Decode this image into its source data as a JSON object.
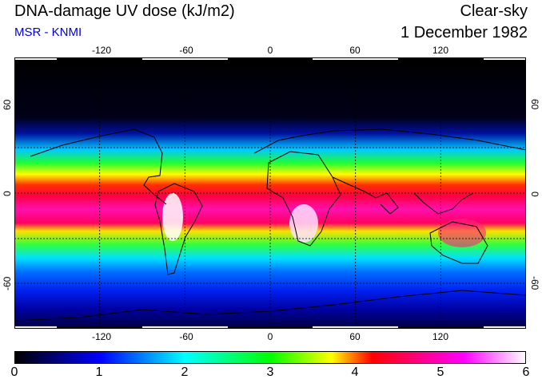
{
  "header": {
    "title": "DNA-damage UV dose (kJ/m2)",
    "subtitle": "MSR - KNMI",
    "condition": "Clear-sky",
    "date": "1 December 1982"
  },
  "map": {
    "projection": "equirectangular",
    "lon_range": [
      -180,
      180
    ],
    "lat_range": [
      -90,
      90
    ],
    "x_ticks": [
      "-120",
      "-60",
      "0",
      "60",
      "120"
    ],
    "y_ticks": [
      "60",
      "0",
      "-60"
    ],
    "grid_style": "dashed",
    "feature": "coastlines over daily clear-sky UV dose field"
  },
  "colorbar": {
    "min": 0,
    "max": 6,
    "labels": [
      "0",
      "1",
      "2",
      "3",
      "4",
      "5",
      "6"
    ],
    "colors": [
      "#000000",
      "#0000ff",
      "#00ffff",
      "#00ff00",
      "#ffff00",
      "#ff0000",
      "#ff00ff",
      "#ffffff"
    ]
  }
}
